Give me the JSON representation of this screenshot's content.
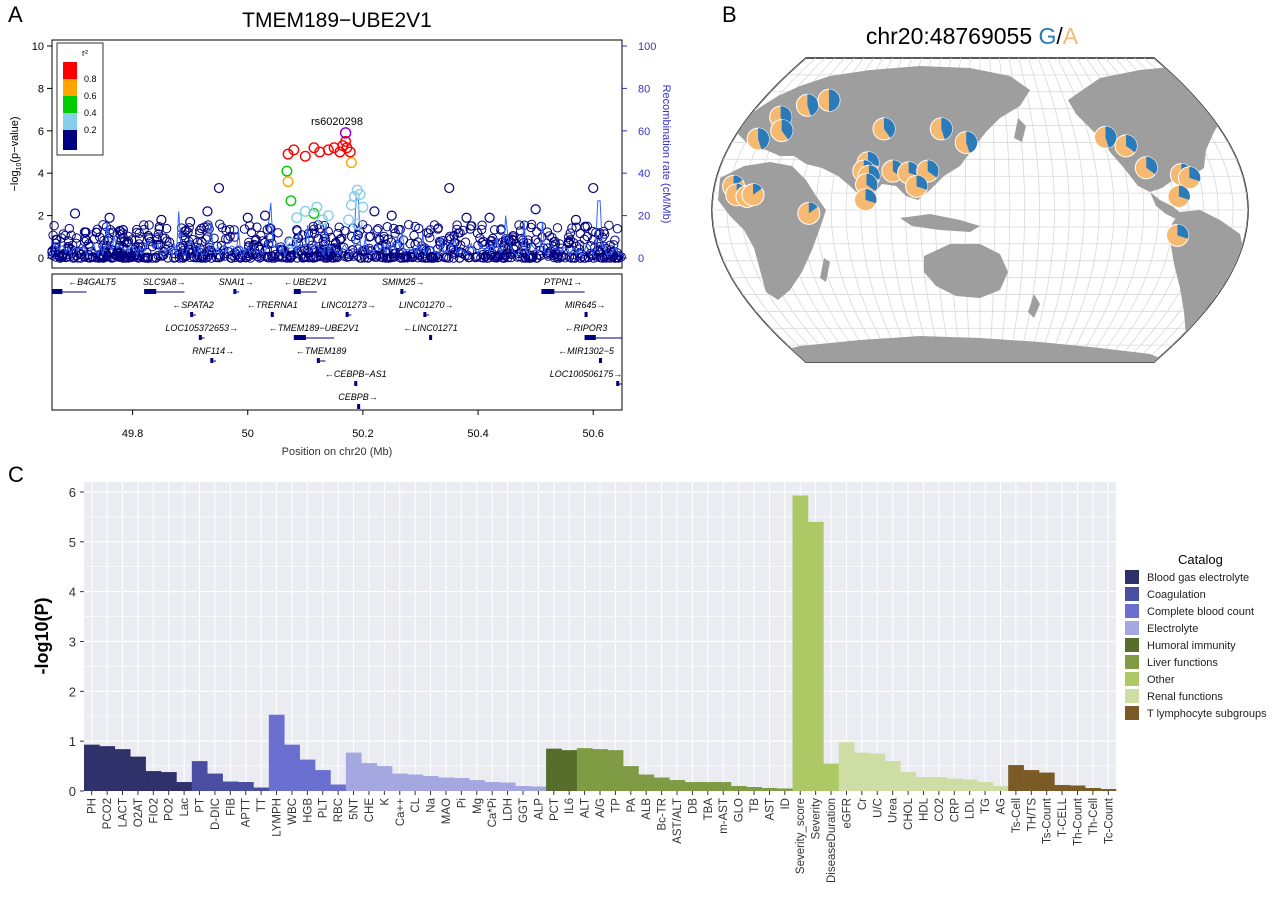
{
  "panel_labels": {
    "a": "A",
    "b": "B",
    "c": "C"
  },
  "colors": {
    "navy": "#1b1f7a",
    "blue_text": "#3333cc",
    "ld_0": "#000080",
    "ld_02": "#87ceeb",
    "ld_04": "#00cc00",
    "ld_06": "#ffa500",
    "ld_08": "#ff0000",
    "lead": "#9400d3",
    "allele_g": "#2b7bba",
    "allele_a": "#f5b971",
    "land": "#9e9e9e",
    "ocean": "#ffffff",
    "gridline": "#d8d8d8",
    "panel_bg": "#ebebf2"
  },
  "chart_data": [
    {
      "type": "scatter",
      "title": "TMEM189−UBE2V1",
      "ylabel": "−log10(p−value)",
      "ylabel_parts": {
        "main": "−log",
        "sub": "10",
        "rest": "(p−value)"
      },
      "y2label": "Recombination rate (cM/Mb)",
      "xlabel": "Position on chr20 (Mb)",
      "xlim": [
        49.66,
        50.65
      ],
      "ylim": [
        0,
        10
      ],
      "y2lim": [
        0,
        100
      ],
      "xticks": [
        "49.8",
        "50",
        "50.2",
        "50.4",
        "50.6"
      ],
      "xtick_values": [
        49.8,
        50.0,
        50.2,
        50.4,
        50.6
      ],
      "yticks": [
        "0",
        "2",
        "4",
        "6",
        "8",
        "10"
      ],
      "y2ticks": [
        "0",
        "20",
        "40",
        "60",
        "80",
        "100"
      ],
      "lead_snp": {
        "label": "rs6020298",
        "x": 50.17,
        "y": 5.9
      },
      "legend": {
        "title": "r²",
        "labels": [
          "0.8",
          "0.6",
          "0.4",
          "0.2"
        ]
      },
      "highlight_points": [
        {
          "x": 50.07,
          "y": 4.9,
          "r2": 0.8
        },
        {
          "x": 50.08,
          "y": 5.1,
          "r2": 0.8
        },
        {
          "x": 50.1,
          "y": 4.8,
          "r2": 0.8
        },
        {
          "x": 50.115,
          "y": 5.2,
          "r2": 0.8
        },
        {
          "x": 50.125,
          "y": 5.0,
          "r2": 0.8
        },
        {
          "x": 50.14,
          "y": 5.1,
          "r2": 0.8
        },
        {
          "x": 50.15,
          "y": 5.2,
          "r2": 0.8
        },
        {
          "x": 50.16,
          "y": 5.0,
          "r2": 0.8
        },
        {
          "x": 50.165,
          "y": 5.3,
          "r2": 0.8
        },
        {
          "x": 50.172,
          "y": 5.2,
          "r2": 0.8
        },
        {
          "x": 50.178,
          "y": 5.0,
          "r2": 0.8
        },
        {
          "x": 50.17,
          "y": 5.5,
          "r2": 0.8
        },
        {
          "x": 50.068,
          "y": 4.1,
          "r2": 0.4
        },
        {
          "x": 50.07,
          "y": 3.6,
          "r2": 0.6
        },
        {
          "x": 50.18,
          "y": 4.5,
          "r2": 0.6
        },
        {
          "x": 50.075,
          "y": 2.7,
          "r2": 0.4
        },
        {
          "x": 50.115,
          "y": 2.1,
          "r2": 0.4
        },
        {
          "x": 50.085,
          "y": 1.9,
          "r2": 0.2
        },
        {
          "x": 50.1,
          "y": 2.2,
          "r2": 0.2
        },
        {
          "x": 50.12,
          "y": 2.4,
          "r2": 0.2
        },
        {
          "x": 50.13,
          "y": 1.8,
          "r2": 0.2
        },
        {
          "x": 50.14,
          "y": 2.0,
          "r2": 0.2
        },
        {
          "x": 50.18,
          "y": 2.5,
          "r2": 0.2
        },
        {
          "x": 50.185,
          "y": 2.9,
          "r2": 0.2
        },
        {
          "x": 50.19,
          "y": 3.2,
          "r2": 0.2
        },
        {
          "x": 50.195,
          "y": 3.0,
          "r2": 0.2
        },
        {
          "x": 50.2,
          "y": 2.4,
          "r2": 0.2
        },
        {
          "x": 50.175,
          "y": 1.8,
          "r2": 0.2
        },
        {
          "x": 50.19,
          "y": 1.6,
          "r2": 0.2
        },
        {
          "x": 50.075,
          "y": 0.7,
          "r2": 0.2
        }
      ],
      "background_points": [
        {
          "x": 49.7,
          "y": 2.1
        },
        {
          "x": 49.76,
          "y": 1.9
        },
        {
          "x": 49.85,
          "y": 1.8
        },
        {
          "x": 49.9,
          "y": 1.7
        },
        {
          "x": 49.93,
          "y": 2.2
        },
        {
          "x": 49.95,
          "y": 3.3
        },
        {
          "x": 50.0,
          "y": 1.9
        },
        {
          "x": 50.03,
          "y": 2.0
        },
        {
          "x": 50.22,
          "y": 2.2
        },
        {
          "x": 50.25,
          "y": 2.0
        },
        {
          "x": 50.35,
          "y": 3.3
        },
        {
          "x": 50.38,
          "y": 1.9
        },
        {
          "x": 50.42,
          "y": 1.9
        },
        {
          "x": 50.5,
          "y": 2.3
        },
        {
          "x": 50.57,
          "y": 1.8
        },
        {
          "x": 50.6,
          "y": 3.3
        }
      ],
      "recombination_peaks": [
        {
          "x": 49.88,
          "y": 22
        },
        {
          "x": 50.04,
          "y": 26
        },
        {
          "x": 50.19,
          "y": 28
        },
        {
          "x": 50.45,
          "y": 20
        },
        {
          "x": 50.61,
          "y": 27
        }
      ],
      "genes": [
        {
          "name": "B4GALT5",
          "row": 0,
          "start": 49.66,
          "end": 49.72,
          "dir": "left"
        },
        {
          "name": "SLC9A8",
          "row": 0,
          "start": 49.82,
          "end": 49.89,
          "dir": "right"
        },
        {
          "name": "SNAI1",
          "row": 0,
          "start": 49.975,
          "end": 49.985,
          "dir": "right"
        },
        {
          "name": "UBE2V1",
          "row": 0,
          "start": 50.08,
          "end": 50.12,
          "dir": "left"
        },
        {
          "name": "SMIM25",
          "row": 0,
          "start": 50.265,
          "end": 50.275,
          "dir": "right"
        },
        {
          "name": "PTPN1",
          "row": 0,
          "start": 50.51,
          "end": 50.585,
          "dir": "right"
        },
        {
          "name": "SPATA2",
          "row": 1,
          "start": 49.9,
          "end": 49.91,
          "dir": "left"
        },
        {
          "name": "TRERNA1",
          "row": 1,
          "start": 50.04,
          "end": 50.045,
          "dir": "left"
        },
        {
          "name": "LINC01273",
          "row": 1,
          "start": 50.17,
          "end": 50.18,
          "dir": "right"
        },
        {
          "name": "LINC01270",
          "row": 1,
          "start": 50.305,
          "end": 50.315,
          "dir": "right"
        },
        {
          "name": "MIR645",
          "row": 1,
          "start": 50.585,
          "end": 50.587,
          "dir": "right"
        },
        {
          "name": "LOC105372653",
          "row": 2,
          "start": 49.915,
          "end": 49.925,
          "dir": "right"
        },
        {
          "name": "TMEM189−UBE2V1",
          "row": 2,
          "start": 50.08,
          "end": 50.15,
          "dir": "left"
        },
        {
          "name": "LINC01271",
          "row": 2,
          "start": 50.315,
          "end": 50.32,
          "dir": "left"
        },
        {
          "name": "RIPOR3",
          "row": 2,
          "start": 50.585,
          "end": 50.65,
          "dir": "left"
        },
        {
          "name": "RNF114",
          "row": 3,
          "start": 49.935,
          "end": 49.945,
          "dir": "right"
        },
        {
          "name": "TMEM189",
          "row": 3,
          "start": 50.12,
          "end": 50.135,
          "dir": "left"
        },
        {
          "name": "MIR1302−5",
          "row": 3,
          "start": 50.61,
          "end": 50.612,
          "dir": "left"
        },
        {
          "name": "CEBPB−AS1",
          "row": 4,
          "start": 50.185,
          "end": 50.19,
          "dir": "left"
        },
        {
          "name": "LOC100506175",
          "row": 4,
          "start": 50.64,
          "end": 50.65,
          "dir": "right"
        },
        {
          "name": "CEBPB",
          "row": 5,
          "start": 50.19,
          "end": 50.193,
          "dir": "right"
        }
      ]
    },
    {
      "type": "pie",
      "title_prefix": "chr20:48769055 ",
      "allele_1": "G",
      "separator": "/",
      "allele_2": "A",
      "note": "world map with per-population pie charts of G (blue) vs A (orange) allele frequencies",
      "populations": [
        {
          "lon": 10,
          "lat": 62,
          "g": 0.45
        },
        {
          "lon": -5,
          "lat": 55,
          "g": 0.45
        },
        {
          "lon": 2,
          "lat": 47,
          "g": 0.4
        },
        {
          "lon": 25,
          "lat": 65,
          "g": 0.5
        },
        {
          "lon": -12,
          "lat": 42,
          "g": 0.45
        },
        {
          "lon": 78,
          "lat": 48,
          "g": 0.4
        },
        {
          "lon": 121,
          "lat": 48,
          "g": 0.45
        },
        {
          "lon": 140,
          "lat": 40,
          "g": 0.45
        },
        {
          "lon": 72,
          "lat": 28,
          "g": 0.3
        },
        {
          "lon": 70,
          "lat": 23,
          "g": 0.35
        },
        {
          "lon": 74,
          "lat": 20,
          "g": 0.3
        },
        {
          "lon": 73,
          "lat": 15,
          "g": 0.35
        },
        {
          "lon": 90,
          "lat": 23,
          "g": 0.35
        },
        {
          "lon": 101,
          "lat": 22,
          "g": 0.3
        },
        {
          "lon": 114,
          "lat": 23,
          "g": 0.35
        },
        {
          "lon": 107,
          "lat": 14,
          "g": 0.3
        },
        {
          "lon": 73,
          "lat": 6,
          "g": 0.3
        },
        {
          "lon": -17,
          "lat": 14,
          "g": 0.15
        },
        {
          "lon": -14,
          "lat": 9,
          "g": 0.2
        },
        {
          "lon": -7,
          "lat": 8,
          "g": 0.15
        },
        {
          "lon": -3,
          "lat": 9,
          "g": 0.15
        },
        {
          "lon": 35,
          "lat": -2,
          "g": 0.15
        },
        {
          "lon": -118,
          "lat": 43,
          "g": 0.45
        },
        {
          "lon": -105,
          "lat": 38,
          "g": 0.35
        },
        {
          "lon": -95,
          "lat": 25,
          "g": 0.35
        },
        {
          "lon": -72,
          "lat": 21,
          "g": 0.35
        },
        {
          "lon": -67,
          "lat": 19,
          "g": 0.3
        },
        {
          "lon": -76,
          "lat": 8,
          "g": 0.3
        },
        {
          "lon": -76,
          "lat": -15,
          "g": 0.3
        }
      ]
    },
    {
      "type": "bar",
      "ylabel": "-log10(P)",
      "ylim": [
        0,
        6.2
      ],
      "yticks": [
        "0",
        "1",
        "2",
        "3",
        "4",
        "5",
        "6"
      ],
      "legend_title": "Catalog",
      "catalogs": [
        {
          "name": "Blood gas electrolyte",
          "color": "#2f326a"
        },
        {
          "name": "Coagulation",
          "color": "#4a4ea3"
        },
        {
          "name": "Complete blood count",
          "color": "#6a6fd0"
        },
        {
          "name": "Electrolyte",
          "color": "#a4a7e0"
        },
        {
          "name": "Humoral immunity",
          "color": "#566d2c"
        },
        {
          "name": "Liver functions",
          "color": "#7f9b44"
        },
        {
          "name": "Other",
          "color": "#adc965"
        },
        {
          "name": "Renal functions",
          "color": "#cedda3"
        },
        {
          "name": "T lymphocyte subgroups",
          "color": "#7a5a25"
        }
      ],
      "categories": [
        "PH",
        "PCO2",
        "LACT",
        "O2AT",
        "FIO2",
        "PO2",
        "Lac",
        "PT",
        "D-DIC",
        "FIB",
        "APTT",
        "TT",
        "LYMPH",
        "WBC",
        "HGB",
        "PLT",
        "RBC",
        "5NT",
        "CHE",
        "K",
        "Ca++",
        "CL",
        "Na",
        "MAO",
        "Pi",
        "Mg",
        "Ca*Pi",
        "LDH",
        "GGT",
        "ALP",
        "PCT",
        "IL6",
        "ALT",
        "A/G",
        "TP",
        "PA",
        "ALB",
        "Bc-TR",
        "AST/ALT",
        "DB",
        "TBA",
        "m-AST",
        "GLO",
        "TB",
        "AST",
        "ID",
        "Severity_score",
        "Severity",
        "DiseaseDuration",
        "eGFR",
        "Cr",
        "U/C",
        "Urea",
        "CHOL",
        "HDL",
        "CO2",
        "CRP",
        "LDL",
        "TG",
        "AG",
        "Ts-Cell",
        "TH/TS",
        "Ts-Count",
        "T-CELL",
        "Th-Count",
        "Th-Cell",
        "Tc-Count"
      ],
      "values": [
        0.93,
        0.9,
        0.84,
        0.69,
        0.4,
        0.38,
        0.18,
        0.6,
        0.35,
        0.19,
        0.18,
        0.07,
        1.53,
        0.93,
        0.63,
        0.42,
        0.13,
        0.77,
        0.56,
        0.5,
        0.35,
        0.33,
        0.3,
        0.27,
        0.26,
        0.22,
        0.18,
        0.17,
        0.1,
        0.09,
        0.85,
        0.82,
        0.86,
        0.84,
        0.82,
        0.5,
        0.33,
        0.27,
        0.22,
        0.18,
        0.18,
        0.18,
        0.1,
        0.08,
        0.06,
        0.05,
        5.93,
        5.4,
        0.55,
        0.98,
        0.77,
        0.75,
        0.6,
        0.38,
        0.28,
        0.28,
        0.25,
        0.23,
        0.18,
        0.1,
        0.52,
        0.42,
        0.37,
        0.12,
        0.11,
        0.06,
        0.04
      ],
      "catalog_index": [
        0,
        0,
        0,
        0,
        0,
        0,
        0,
        1,
        1,
        1,
        1,
        1,
        2,
        2,
        2,
        2,
        2,
        3,
        3,
        3,
        3,
        3,
        3,
        3,
        3,
        3,
        3,
        3,
        3,
        3,
        4,
        4,
        5,
        5,
        5,
        5,
        5,
        5,
        5,
        5,
        5,
        5,
        5,
        5,
        5,
        5,
        6,
        6,
        6,
        7,
        7,
        7,
        7,
        7,
        7,
        7,
        7,
        7,
        7,
        7,
        8,
        8,
        8,
        8,
        8,
        8,
        8
      ]
    }
  ]
}
